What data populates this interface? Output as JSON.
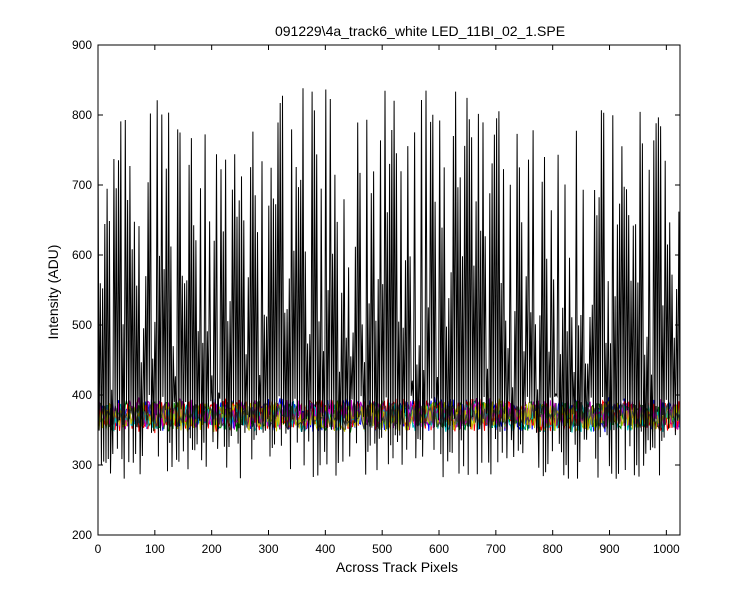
{
  "chart_data": {
    "type": "line",
    "title": "091229\\4a_track6_white LED_11BI_02_1.SPE",
    "xlabel": "Across Track Pixels",
    "ylabel": "Intensity (ADU)",
    "xlim": [
      0,
      1024
    ],
    "ylim": [
      200,
      900
    ],
    "xticks": [
      0,
      100,
      200,
      300,
      400,
      500,
      600,
      700,
      800,
      900,
      1000
    ],
    "yticks": [
      200,
      300,
      400,
      500,
      600,
      700,
      800,
      900
    ],
    "grid": false,
    "legend": "none",
    "series": [
      {
        "color": "#000000",
        "description_values": "high-variance trace, alternating between roughly 300 and 820 ADU across all pixels",
        "low_range": [
          280,
          400
        ],
        "high_range": [
          500,
          840
        ],
        "points": 512
      },
      {
        "color": "#0000ff",
        "center": 372,
        "spread": 22
      },
      {
        "color": "#008000",
        "center": 370,
        "spread": 20
      },
      {
        "color": "#ff0000",
        "center": 371,
        "spread": 22
      },
      {
        "color": "#00bfbf",
        "center": 369,
        "spread": 20
      },
      {
        "color": "#bf00bf",
        "center": 373,
        "spread": 20
      },
      {
        "color": "#bfbf00",
        "center": 370,
        "spread": 20
      },
      {
        "color": "#404040",
        "center": 371,
        "spread": 18
      }
    ],
    "colors": {
      "axes": "#000000",
      "background": "#ffffff"
    }
  }
}
